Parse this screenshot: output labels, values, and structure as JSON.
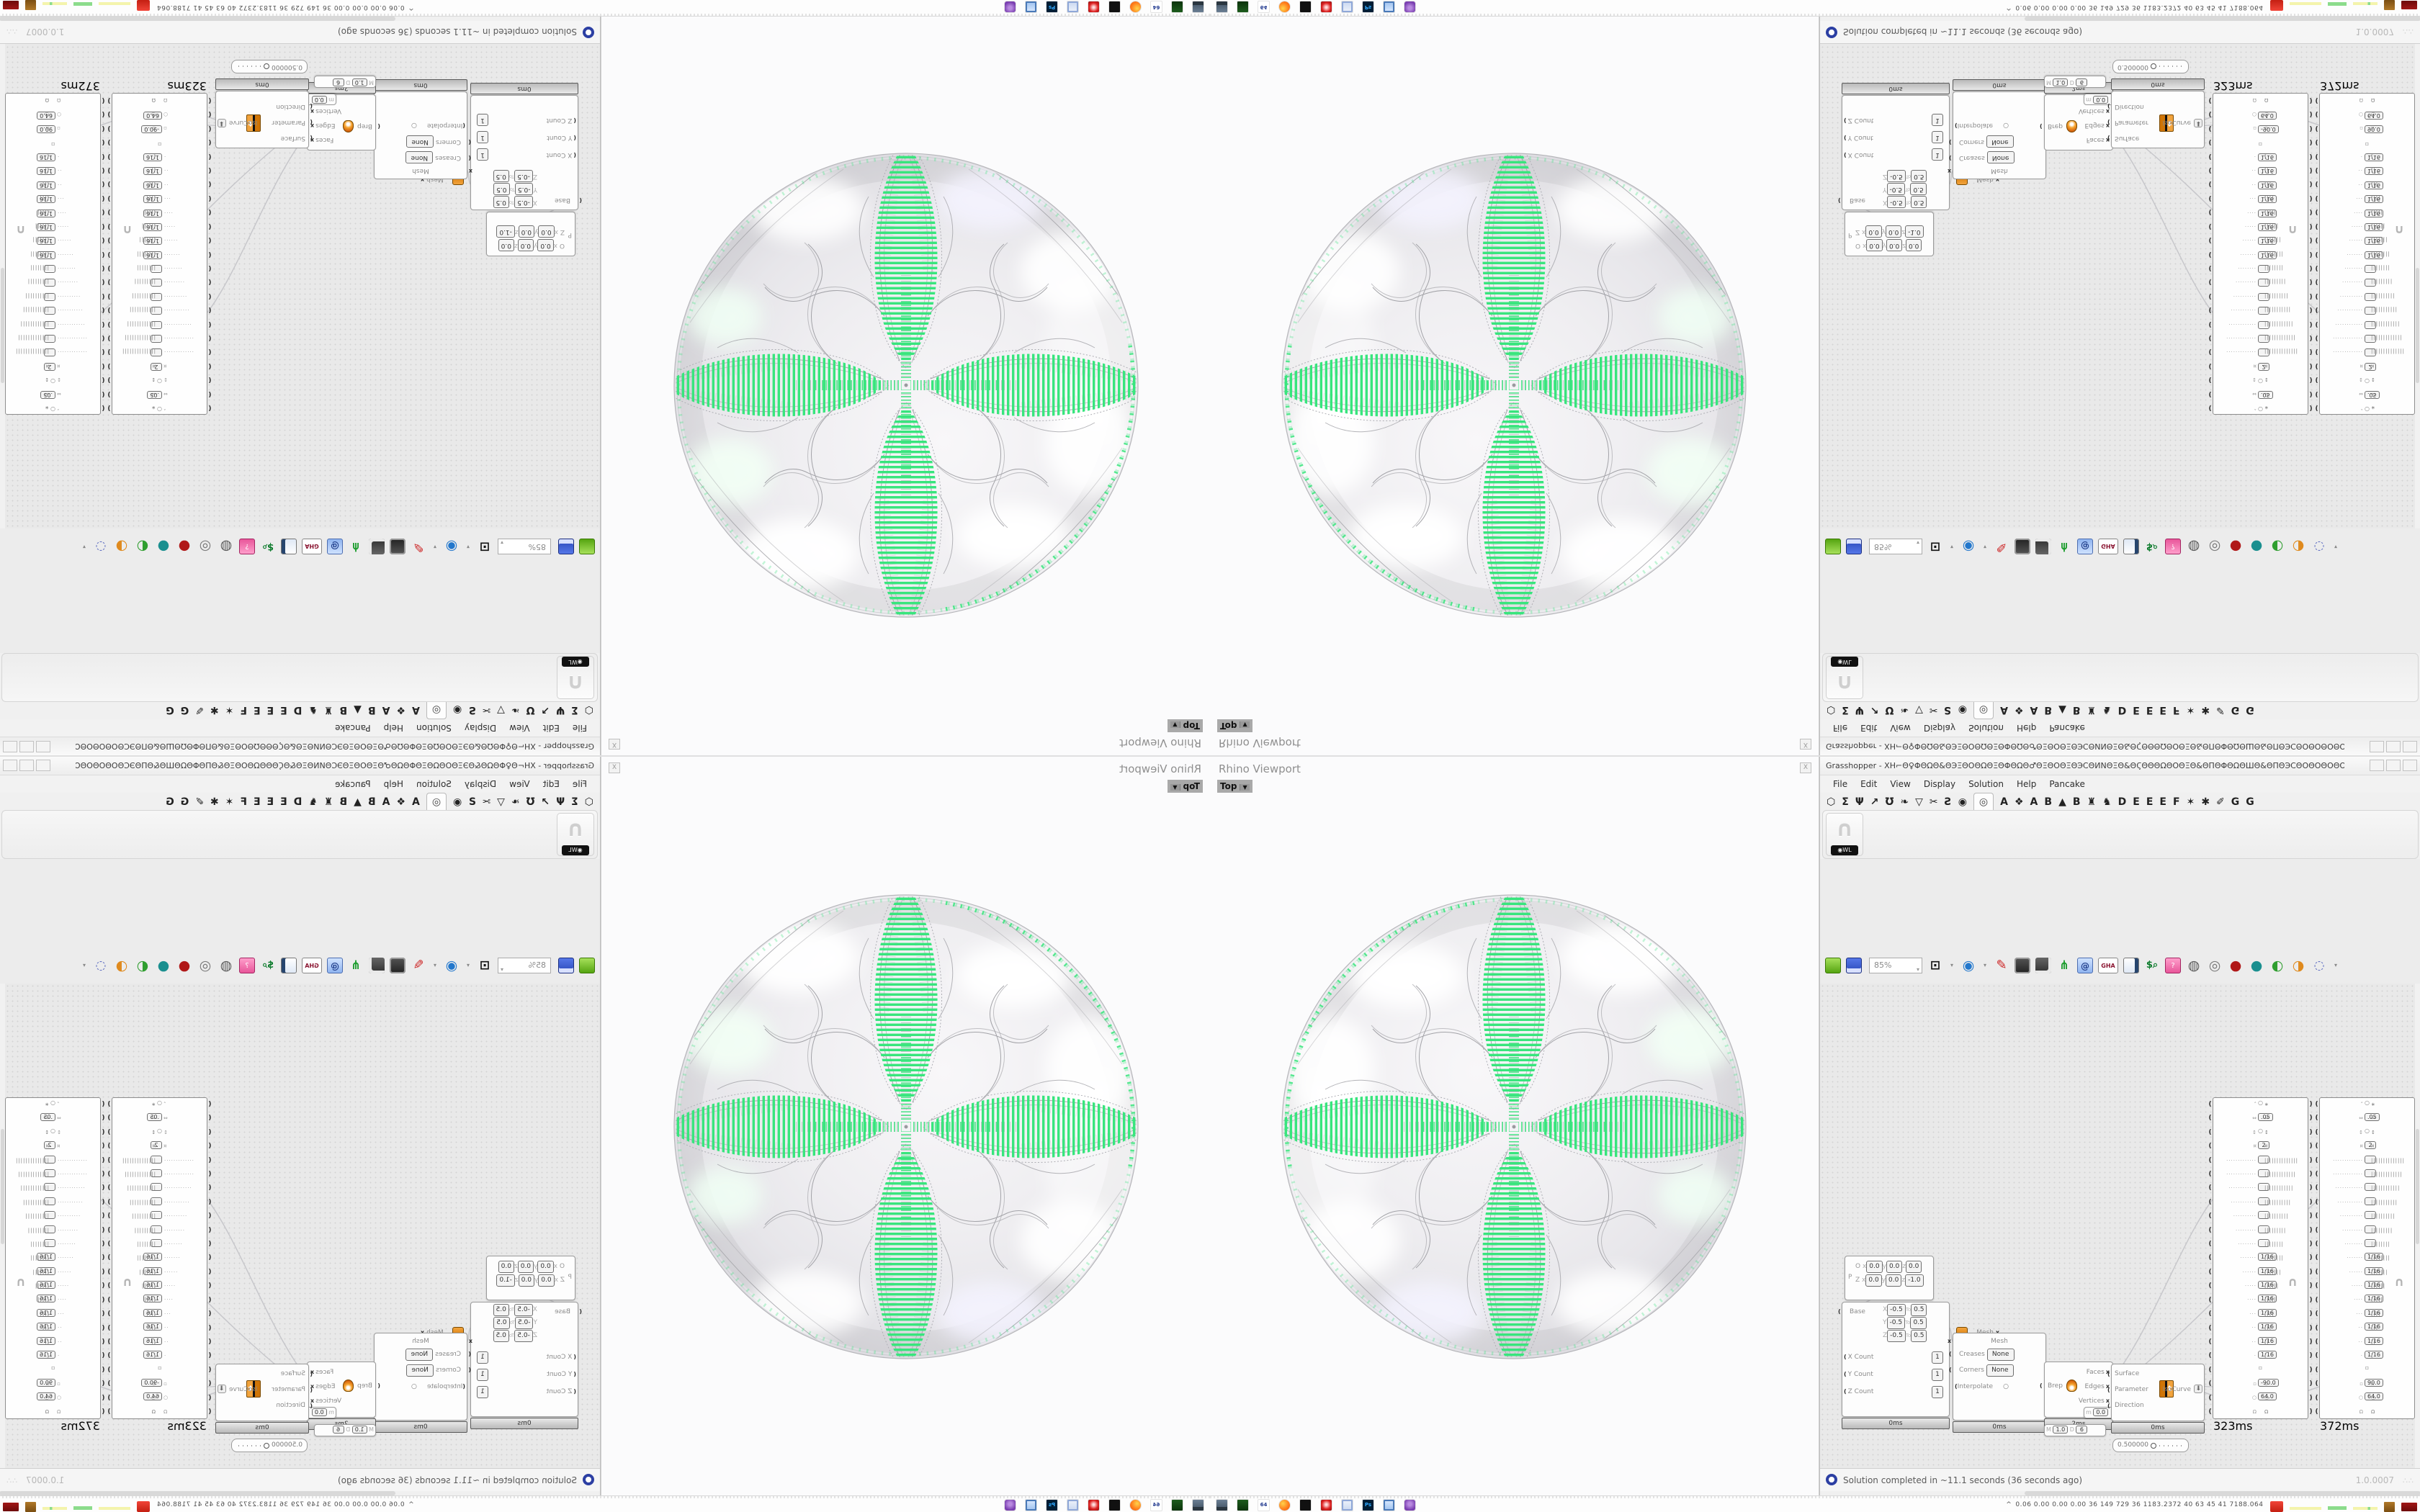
{
  "colors": {
    "green": "#38e57d",
    "accent_orange": "#e8940a",
    "profiler_orange": "#e89018",
    "status_blue": "#2c3fa3"
  },
  "viewport": {
    "title": "Rhino Viewport",
    "close_glyph": "X",
    "tab_label": "Top",
    "tab_arrow": "▼"
  },
  "gh": {
    "window_title": "Grasshopper - XH⌐Θ♀ΦΘΩΘ&ΘЭΞΘΟΘΩΘΞΘΦΘΩΘ♂ΘΞΘΟΘΞΘЭϹΘͶΝΘΞΘ&ΘϚΘΘΘΩΘΟΘΞΘ&ΘΠΘΦΘΩΘШΘ&ΘΠΘЭϹΘΟΘΟΘΟΘΟΘΟΘΟΘΟΘΟΘΟΘΟ⌐",
    "window_buttons": [
      "–",
      "□",
      "×"
    ],
    "menus": [
      "File",
      "Edit",
      "View",
      "Display",
      "Solution",
      "Help",
      "Pancake"
    ],
    "tabs_standard": [
      "⬡",
      "Σ",
      "Ψ",
      "↗",
      "Ʊ",
      "❧",
      "▽",
      "✂",
      "Ƨ",
      "◉"
    ],
    "tab_selected_glyph": "◎",
    "tabs_plugins": [
      "A",
      "❖",
      "A",
      "B",
      "▲",
      "B",
      "♜",
      "♞",
      "D",
      "E",
      "E",
      "E",
      "F",
      "✶",
      "✱",
      "✐",
      "G",
      "G"
    ],
    "panel_component_badge": "◉WL",
    "panel_component_glyph": "∩",
    "toolbar": {
      "zoom_value": "85%",
      "zoom_arrow": "▾",
      "gha_label": "GHA",
      "icon_names": [
        "open-file",
        "save-file",
        "zoom-select",
        "zoom-extents",
        "arrow1",
        "preview-eye",
        "arrow2",
        "sketch-pen",
        "viewport-icon",
        "camera-icon",
        "axes-icon",
        "remote-icon",
        "gha-badge",
        "notes-icon",
        "fee-search",
        "package-question",
        "preview-off",
        "preview-wire",
        "preview-shaded",
        "ball-teal",
        "ball-green",
        "ball-orange",
        "selection-lasso",
        "arrow3"
      ]
    },
    "status": {
      "text": "Solution completed in ~11.1 seconds (36 seconds ago)",
      "version": "1.0.0007",
      "grip": "∴∴"
    },
    "nodes": {
      "plane": {
        "label": "P",
        "row1": {
          "name": "O",
          "x": "0.0",
          "y": "0.0",
          "z": "0.0"
        },
        "row2": {
          "name": "Z",
          "x": "0.0",
          "y": "0.0",
          "z": "-1.0"
        },
        "axis_labels": [
          "x",
          "y",
          "z"
        ]
      },
      "meshbox": {
        "base_label": "Base",
        "axes": [
          {
            "axis": "X",
            "from": "-0.5",
            "to_word": "To",
            "to": "0.5"
          },
          {
            "axis": "Y",
            "from": "-0.5",
            "to_word": "To",
            "to": "0.5"
          },
          {
            "axis": "Z",
            "from": "-0.5",
            "to_word": "To",
            "to": "0.5"
          }
        ],
        "counts": [
          {
            "label": "X Count",
            "value": "1"
          },
          {
            "label": "Y Count",
            "value": "1"
          },
          {
            "label": "Z Count",
            "value": "1"
          }
        ],
        "output": "Mesh",
        "time": "0ms"
      },
      "subd": {
        "input": "Mesh",
        "rows": [
          {
            "label": "Creases",
            "value": "None"
          },
          {
            "label": "Corners",
            "value": "None"
          }
        ],
        "interp_label": "Interpolate",
        "output": "SubD",
        "time": "0ms"
      },
      "dec": {
        "input": "Brep",
        "outputs": [
          "Faces",
          "Edges",
          "Vertices"
        ],
        "time": "2ms",
        "mini_row": [
          "M",
          "1.0",
          "D",
          "6"
        ],
        "m_row": [
          "m",
          "0.0"
        ]
      },
      "iso": {
        "inputs": [
          "Surface",
          "Parameter",
          "Direction"
        ],
        "icon_letter": "t",
        "output": "IsoCurve",
        "out_glyph": "⬇",
        "time": "0ms",
        "slider_value": "0.500000"
      },
      "seq": {
        "times": [
          "323ms",
          "372ms"
        ],
        "deg_left": "-90.0",
        "deg_right": "90.0",
        "rows": [
          {
            "l": "˄",
            "c": "○",
            "r": "∗"
          },
          {
            "l": "⇔",
            "v": ".05",
            "r": "⇔"
          },
          {
            "l": "↕",
            "c": "○",
            "r": "↕"
          },
          {
            "l": "¤",
            "v": "2",
            "r": "¤"
          },
          {
            "d": 13,
            "v": "",
            "b": 14
          },
          {
            "d": 13,
            "v": "",
            "b": 13
          },
          {
            "d": 12,
            "v": "",
            "b": 12
          },
          {
            "d": 11,
            "v": "",
            "b": 11
          },
          {
            "d": 10,
            "v": "",
            "b": 10
          },
          {
            "d": 9,
            "v": "",
            "b": 9
          },
          {
            "d": 8,
            "v": "",
            "b": 8
          },
          {
            "d": 7,
            "v": "1/16",
            "b": 8
          },
          {
            "d": 6,
            "v": "1/16",
            "b": 7
          },
          {
            "d": 5,
            "v": "1/16",
            "b": 6
          },
          {
            "d": 4,
            "v": "1/16",
            "b": 5
          },
          {
            "d": 3,
            "v": "1/16",
            "b": 4
          },
          {
            "d": 2,
            "v": "1/16",
            "b": 3
          },
          {
            "d": 2,
            "v": "1/16",
            "b": 2
          },
          {
            "d": 1,
            "v": "1/16",
            "b": 1
          },
          {
            "c": "▫"
          },
          {
            "l": "▫",
            "v": "-90.0",
            "r": "▫"
          },
          {
            "l": "○",
            "v": "64.0",
            "r": "○"
          },
          {
            "l": "Ω",
            "r": "Ω"
          }
        ],
        "arch_glyph": "∩",
        "hook_left": "(",
        "hook_right": ")"
      }
    }
  },
  "taskbar": {
    "icons": [
      {
        "name": "desktop-monitor",
        "kind": "mon"
      },
      {
        "name": "terminal-green",
        "kind": "term"
      },
      {
        "name": "n64-emulator",
        "kind": "n64",
        "label": "64"
      },
      {
        "name": "firefox",
        "kind": "ff"
      },
      {
        "name": "inkscape-dark",
        "kind": "ink"
      },
      {
        "name": "ruby-red",
        "kind": "ruby"
      },
      {
        "name": "windows-explorer",
        "kind": "win"
      },
      {
        "name": "photoshop",
        "kind": "ps",
        "label": "Ps"
      },
      {
        "name": "paint-blue",
        "kind": "oo"
      },
      {
        "name": "gimp-purple",
        "kind": "gimp"
      }
    ],
    "tray": {
      "chevron": "^",
      "numbers": "0.06 0.00 0.00 0.00  36  149  729  36  1183.2372  40  63  45  41  7188.064"
    }
  }
}
